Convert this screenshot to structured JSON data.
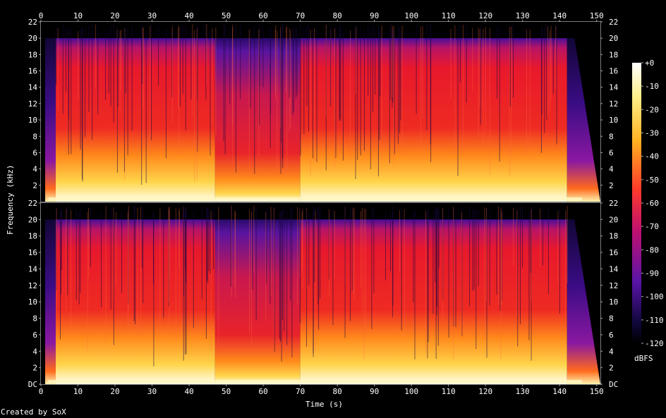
{
  "credit": "Created by SoX",
  "chart_data": {
    "type": "heatmap",
    "title": "",
    "xlabel": "Time (s)",
    "ylabel": "Frequency (kHz)",
    "xlim": [
      0,
      151
    ],
    "ylim_khz": [
      0,
      22
    ],
    "x_ticks": [
      0,
      10,
      20,
      30,
      40,
      50,
      60,
      70,
      80,
      90,
      100,
      110,
      120,
      130,
      140,
      150
    ],
    "y_ticks": [
      "DC",
      "2",
      "4",
      "6",
      "8",
      "10",
      "12",
      "14",
      "16",
      "18",
      "20",
      "22"
    ],
    "channels": 2,
    "colorbar": {
      "label": "dBFS",
      "range": [
        -120,
        0
      ],
      "ticks": [
        "+0",
        "-10",
        "-20",
        "-30",
        "-40",
        "-50",
        "-60",
        "-70",
        "-80",
        "-90",
        "-100",
        "-110",
        "-120"
      ]
    },
    "features": {
      "start_fade_in_s": [
        0,
        4
      ],
      "bandwidth_khz": 20,
      "quiet_section_s": [
        47,
        70
      ],
      "fade_out_s": [
        142,
        151
      ]
    },
    "colors": {
      "low": "#000000",
      "mid_low": "#3a0a8a",
      "mid": "#e01a2a",
      "mid_high": "#ff9a20",
      "high": "#ffffff"
    }
  }
}
